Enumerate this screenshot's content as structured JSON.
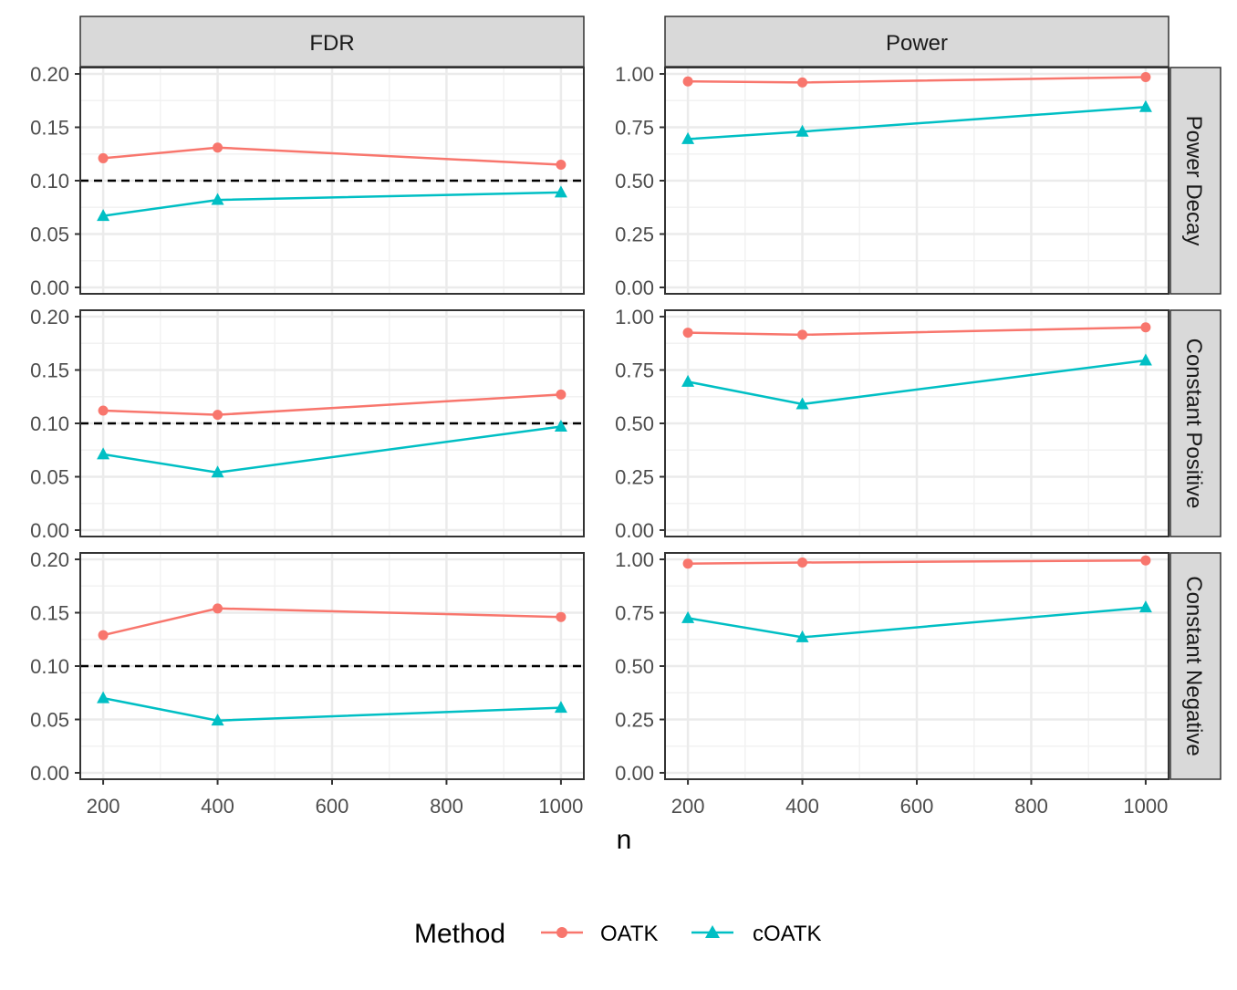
{
  "chart_data": {
    "type": "line",
    "facet_columns": [
      "FDR",
      "Power"
    ],
    "facet_rows": [
      "Power Decay",
      "Constant Positive",
      "Constant Negative"
    ],
    "x": [
      200,
      400,
      1000
    ],
    "xlabel": "n",
    "x_ticks": [
      "200",
      "400",
      "600",
      "800",
      "1000"
    ],
    "x_tick_values": [
      200,
      400,
      600,
      800,
      1000
    ],
    "xlim": [
      160,
      1040
    ],
    "y_ticks": {
      "FDR": [
        "0.00",
        "0.05",
        "0.10",
        "0.15",
        "0.20"
      ],
      "Power": [
        "0.00",
        "0.25",
        "0.50",
        "0.75",
        "1.00"
      ]
    },
    "y_tick_values": {
      "FDR": [
        0,
        0.05,
        0.1,
        0.15,
        0.2
      ],
      "Power": [
        0,
        0.25,
        0.5,
        0.75,
        1.0
      ]
    },
    "ylim": {
      "FDR": [
        -0.006,
        0.206
      ],
      "Power": [
        -0.03,
        1.03
      ]
    },
    "reference_line": {
      "facet_column": "FDR",
      "y": 0.1,
      "style": "dashed"
    },
    "grid": true,
    "legend": {
      "title": "Method",
      "position": "bottom",
      "entries": [
        {
          "name": "OATK",
          "color": "#F8766D",
          "marker": "circle"
        },
        {
          "name": "cOATK",
          "color": "#00BFC4",
          "marker": "triangle"
        }
      ]
    },
    "panels": [
      {
        "row": "Power Decay",
        "col": "FDR",
        "series": [
          {
            "name": "OATK",
            "values": [
              0.121,
              0.131,
              0.115
            ]
          },
          {
            "name": "cOATK",
            "values": [
              0.067,
              0.082,
              0.089
            ]
          }
        ]
      },
      {
        "row": "Power Decay",
        "col": "Power",
        "series": [
          {
            "name": "OATK",
            "values": [
              0.965,
              0.96,
              0.985
            ]
          },
          {
            "name": "cOATK",
            "values": [
              0.695,
              0.73,
              0.845
            ]
          }
        ]
      },
      {
        "row": "Constant Positive",
        "col": "FDR",
        "series": [
          {
            "name": "OATK",
            "values": [
              0.112,
              0.108,
              0.127
            ]
          },
          {
            "name": "cOATK",
            "values": [
              0.071,
              0.054,
              0.097
            ]
          }
        ]
      },
      {
        "row": "Constant Positive",
        "col": "Power",
        "series": [
          {
            "name": "OATK",
            "values": [
              0.925,
              0.915,
              0.95
            ]
          },
          {
            "name": "cOATK",
            "values": [
              0.695,
              0.59,
              0.795
            ]
          }
        ]
      },
      {
        "row": "Constant Negative",
        "col": "FDR",
        "series": [
          {
            "name": "OATK",
            "values": [
              0.129,
              0.154,
              0.146
            ]
          },
          {
            "name": "cOATK",
            "values": [
              0.07,
              0.049,
              0.061
            ]
          }
        ]
      },
      {
        "row": "Constant Negative",
        "col": "Power",
        "series": [
          {
            "name": "OATK",
            "values": [
              0.98,
              0.985,
              0.995
            ]
          },
          {
            "name": "cOATK",
            "values": [
              0.725,
              0.635,
              0.775
            ]
          }
        ]
      }
    ]
  }
}
